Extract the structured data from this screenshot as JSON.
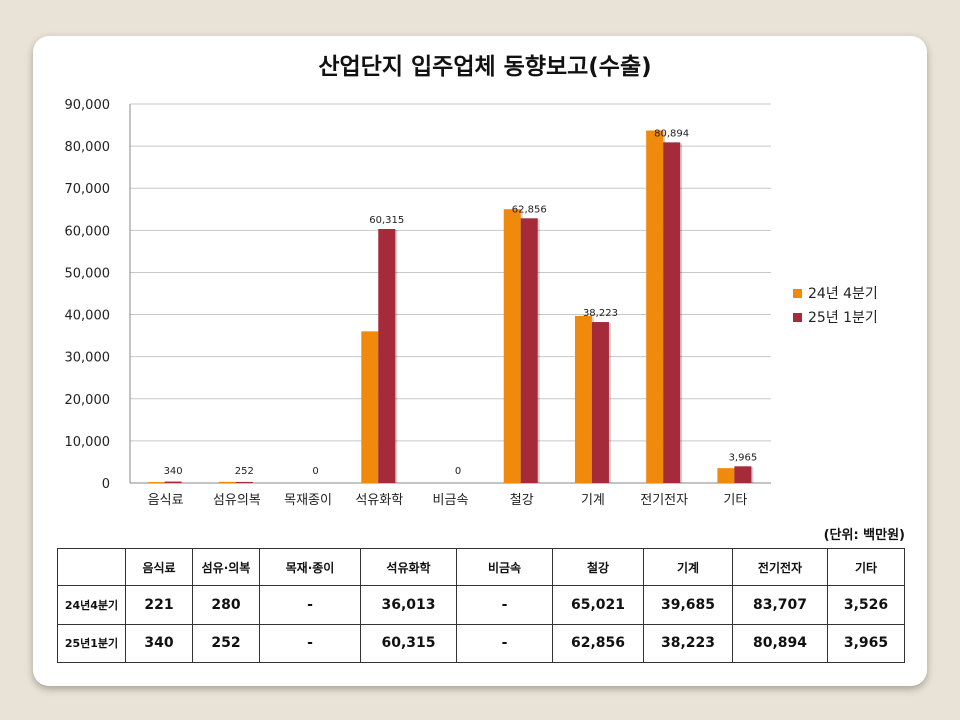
{
  "title": "산업단지 입주업체 동향보고(수출)",
  "unit_note": "(단위: 백만원)",
  "colors": {
    "series1": "#f08a0c",
    "series2": "#a52a3a"
  },
  "chart_data": {
    "type": "bar",
    "title": "산업단지 입주업체 동향보고(수출)",
    "categories": [
      "음식료",
      "섬유의복",
      "목재종이",
      "석유화학",
      "비금속",
      "철강",
      "기계",
      "전기전자",
      "기타"
    ],
    "series": [
      {
        "name": "24년 4분기",
        "values": [
          221,
          280,
          0,
          36013,
          0,
          65021,
          39685,
          83707,
          3526
        ]
      },
      {
        "name": "25년 1분기",
        "values": [
          340,
          252,
          0,
          60315,
          0,
          62856,
          38223,
          80894,
          3965
        ]
      }
    ],
    "data_labels": [
      "340",
      "252",
      "0",
      "60,315",
      "0",
      "62,856",
      "38,223",
      "80,894",
      "3,965"
    ],
    "y_ticks": [
      "0",
      "10,000",
      "20,000",
      "30,000",
      "40,000",
      "50,000",
      "60,000",
      "70,000",
      "80,000",
      "90,000"
    ],
    "ylim": [
      0,
      90000
    ],
    "grid": true,
    "legend": "right"
  },
  "table": {
    "headers": [
      "",
      "음식료",
      "섬유·의복",
      "목재·종이",
      "석유화학",
      "비금속",
      "철강",
      "기계",
      "전기전자",
      "기타"
    ],
    "rows": [
      {
        "label": "24년4분기",
        "cells": [
          "221",
          "280",
          "-",
          "36,013",
          "-",
          "65,021",
          "39,685",
          "83,707",
          "3,526"
        ]
      },
      {
        "label": "25년1분기",
        "cells": [
          "340",
          "252",
          "-",
          "60,315",
          "-",
          "62,856",
          "38,223",
          "80,894",
          "3,965"
        ]
      }
    ]
  }
}
